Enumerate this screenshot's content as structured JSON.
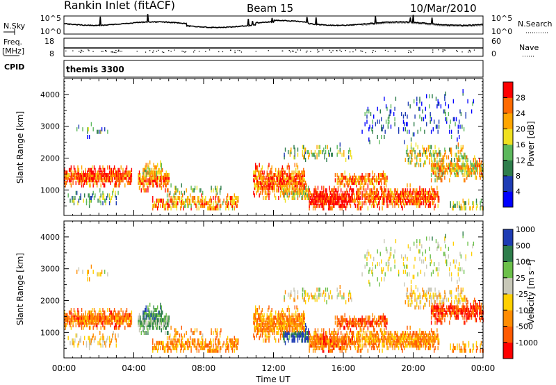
{
  "header": {
    "station": "Rankin Inlet (fitACF)",
    "beam": "Beam 15",
    "date": "10/Mar/2010"
  },
  "top_panels": {
    "nsky_label": "N.Sky",
    "nsearch_label": "N.Search",
    "nsky_ticks": [
      "10^5",
      "10^0"
    ],
    "nsearch_ticks": [
      "10^5",
      "10^0"
    ],
    "freq_label": "Freq.",
    "freq_unit": "[MHz]",
    "freq_ticks": [
      "18",
      "8"
    ],
    "nave_label": "Nave",
    "nave_ticks": [
      "60",
      "0"
    ],
    "cpid_label": "CPID",
    "cpid_value": "themis 3300"
  },
  "colors": {
    "power": [
      "#0000ff",
      "#1e3cb4",
      "#2e7d4b",
      "#5cb85c",
      "#f0e020",
      "#ffa500",
      "#ff6a00",
      "#ff0000"
    ],
    "velocity": [
      "#ff0000",
      "#ff5a00",
      "#ff8c00",
      "#ffd000",
      "#c8c8b8",
      "#6cc04a",
      "#2e7d4b",
      "#1e3cb4"
    ]
  },
  "chart_data": [
    {
      "type": "heatmap",
      "panel": "power",
      "ylabel": "Slant Range [km]",
      "yticks": [
        1000,
        2000,
        3000,
        4000
      ],
      "ylim": [
        200,
        4500
      ],
      "xticks": [
        "00:00",
        "04:00",
        "08:00",
        "12:00",
        "16:00",
        "20:00",
        "00:00"
      ],
      "xlim_hours": [
        0,
        24
      ],
      "colorbar_label": "Power [dB]",
      "colorbar_ticks": [
        "4",
        "8",
        "12",
        "16",
        "20",
        "24",
        "28"
      ]
    },
    {
      "type": "heatmap",
      "panel": "velocity",
      "ylabel": "Slant Range [km]",
      "yticks": [
        1000,
        2000,
        3000,
        4000
      ],
      "ylim": [
        200,
        4500
      ],
      "xticks": [
        "00:00",
        "04:00",
        "08:00",
        "12:00",
        "16:00",
        "20:00",
        "00:00"
      ],
      "xlim_hours": [
        0,
        24
      ],
      "xlabel": "Time UT",
      "colorbar_label": "Velocity [m s⁻¹]",
      "colorbar_ticks": [
        "-1000",
        "-500",
        "-100",
        "-25",
        "25",
        "100",
        "500",
        "1000"
      ]
    }
  ]
}
